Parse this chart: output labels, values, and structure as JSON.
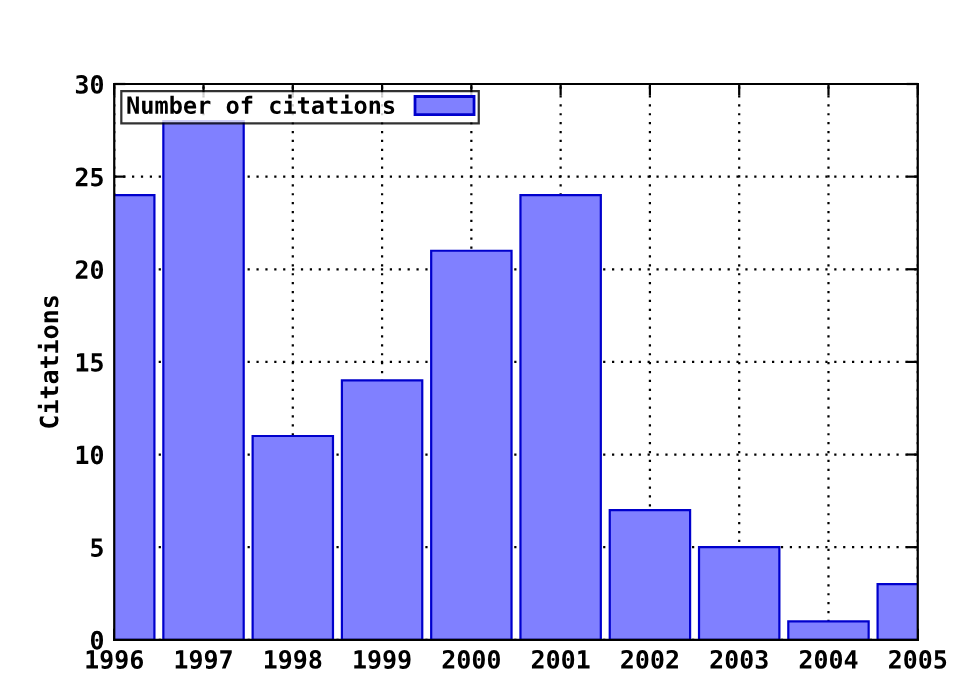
{
  "chart_data": {
    "type": "bar",
    "ylabel": "Citations",
    "x": [
      1996,
      1997,
      1998,
      1999,
      2000,
      2001,
      2002,
      2003,
      2004,
      2005
    ],
    "series": [
      {
        "name": "Number of citations",
        "color": "#8080ff",
        "values": [
          24,
          28,
          11,
          14,
          21,
          24,
          7,
          5,
          1,
          3
        ]
      }
    ],
    "xlim": [
      1996,
      2005
    ],
    "xticks": [
      1996,
      1997,
      1998,
      1999,
      2000,
      2001,
      2002,
      2003,
      2004,
      2005
    ],
    "ylim": [
      0,
      30
    ],
    "yticks": [
      0,
      5,
      10,
      15,
      20,
      25,
      30
    ],
    "grid": true,
    "legend": "top left"
  }
}
